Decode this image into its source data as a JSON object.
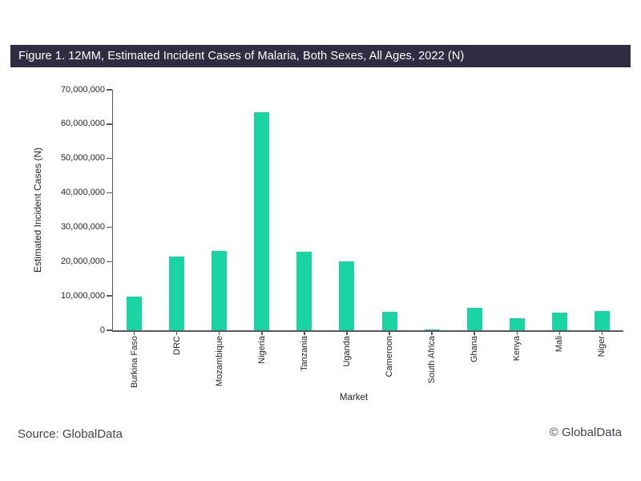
{
  "figure_title": "Figure 1. 12MM, Estimated Incident Cases of Malaria, Both Sexes, All Ages, 2022 (N)",
  "footer": {
    "source": "Source: GlobalData",
    "copyright": "© GlobalData"
  },
  "colors": {
    "title_bar_bg": "#312C41",
    "title_text": "#FFFFFF",
    "bar": "#1BD4A4",
    "axis_line": "#595959",
    "tick_text": "#262626",
    "footer_text": "#45424E"
  },
  "chart_data": {
    "type": "bar",
    "title": "Figure 1. 12MM, Estimated Incident Cases of Malaria, Both Sexes, All Ages, 2022 (N)",
    "categories": [
      "Burkina Faso",
      "DRC",
      "Mozambique",
      "Nigeria",
      "Tanzania",
      "Uganda",
      "Cameroon",
      "South Africa",
      "Ghana",
      "Kenya",
      "Mali",
      "Niger"
    ],
    "values": [
      9900000,
      21500000,
      23000000,
      63500000,
      22900000,
      20000000,
      5300000,
      300000,
      6500000,
      3600000,
      5100000,
      5700000
    ],
    "xlabel": "Market",
    "ylabel": "Estimated Incident Cases (N)",
    "ylim": [
      0,
      70000000
    ],
    "ytick_step": 10000000,
    "ytick_labels": [
      "0",
      "10,000,000",
      "20,000,000",
      "30,000,000",
      "40,000,000",
      "50,000,000",
      "60,000,000",
      "70,000,000"
    ],
    "grid": false,
    "legend": "none",
    "bar_color": "#1BD4A4"
  }
}
